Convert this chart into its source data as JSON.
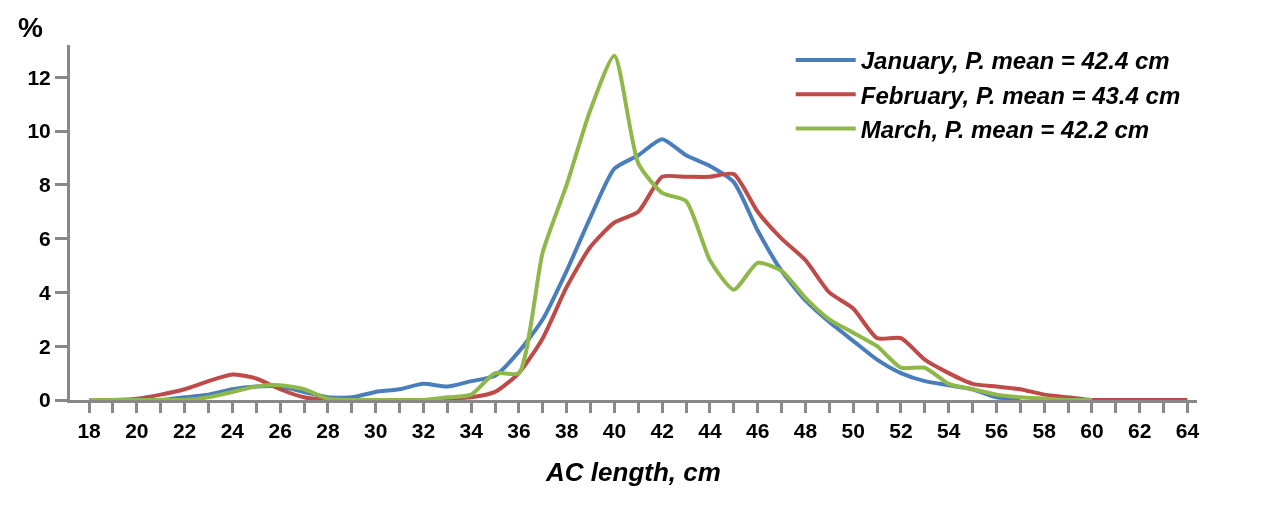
{
  "chart_data": {
    "type": "line",
    "xlabel": "AC length, cm",
    "ylabel": "%",
    "xlim": [
      17.2,
      64.4
    ],
    "xticks": [
      18,
      20,
      22,
      24,
      26,
      28,
      30,
      32,
      34,
      36,
      38,
      40,
      42,
      44,
      46,
      48,
      50,
      52,
      54,
      56,
      58,
      60,
      62,
      64
    ],
    "ylim": [
      0,
      13.2
    ],
    "yticks": [
      0,
      2,
      4,
      6,
      8,
      10,
      12
    ],
    "grid": false,
    "legend": "top right",
    "marker": "none",
    "line_style": "solid",
    "series": [
      {
        "name": "January, P. mean = 42.4 cm",
        "color": "#4a7ebb",
        "x": [
          20,
          21,
          22,
          23,
          24,
          25,
          26,
          27,
          28,
          29,
          30,
          31,
          32,
          33,
          34,
          35,
          36,
          37,
          38,
          39,
          40,
          41,
          42,
          43,
          44,
          45,
          46,
          47,
          48,
          49,
          50,
          51,
          52,
          53,
          54,
          55,
          56,
          57
        ],
        "values": [
          0,
          0,
          0.1,
          0.2,
          0.4,
          0.5,
          0.5,
          0.3,
          0.1,
          0.1,
          0.3,
          0.4,
          0.6,
          0.5,
          0.7,
          0.9,
          1.8,
          3.0,
          4.8,
          6.8,
          8.6,
          9.1,
          9.7,
          9.1,
          8.7,
          8.1,
          6.3,
          4.8,
          3.7,
          2.9,
          2.2,
          1.5,
          1.0,
          0.7,
          0.55,
          0.4,
          0.1,
          0.05
        ]
      },
      {
        "name": "February, P. mean = 43.4 cm",
        "color": "#be4b48",
        "x": [
          18,
          19,
          20,
          21,
          22,
          23,
          24,
          25,
          26,
          27,
          28,
          29,
          30,
          31,
          32,
          33,
          34,
          35,
          36,
          37,
          38,
          39,
          40,
          41,
          42,
          43,
          44,
          45,
          46,
          47,
          48,
          49,
          50,
          51,
          52,
          53,
          54,
          55,
          56,
          57,
          58,
          59,
          60,
          61,
          62,
          63,
          64
        ],
        "values": [
          0,
          0,
          0.05,
          0.2,
          0.4,
          0.7,
          0.95,
          0.8,
          0.4,
          0.1,
          0,
          0,
          0,
          0,
          0,
          0.05,
          0.1,
          0.3,
          1.0,
          2.3,
          4.2,
          5.7,
          6.6,
          7.0,
          8.3,
          8.3,
          8.3,
          8.4,
          7.0,
          6.0,
          5.2,
          4.0,
          3.4,
          2.3,
          2.3,
          1.5,
          1.0,
          0.6,
          0.5,
          0.4,
          0.2,
          0.1,
          0,
          0,
          0,
          0,
          0
        ]
      },
      {
        "name": "March, P. mean = 42.2 cm",
        "color": "#8fb84a",
        "x": [
          18,
          19,
          20,
          21,
          22,
          23,
          24,
          25,
          26,
          27,
          28,
          29,
          30,
          31,
          32,
          33,
          34,
          35,
          36,
          37,
          38,
          39,
          40,
          41,
          42,
          43,
          44,
          45,
          46,
          47,
          48,
          49,
          50,
          51,
          52,
          53,
          54,
          55,
          56,
          57,
          58,
          59,
          60
        ],
        "values": [
          0,
          0,
          0,
          0,
          0,
          0.1,
          0.3,
          0.5,
          0.55,
          0.4,
          0.05,
          0,
          0,
          0,
          0,
          0.1,
          0.2,
          1.0,
          1.0,
          5.5,
          8.0,
          10.8,
          12.8,
          8.8,
          7.7,
          7.4,
          5.2,
          4.1,
          5.1,
          4.8,
          3.8,
          3.0,
          2.5,
          2.0,
          1.2,
          1.2,
          0.6,
          0.4,
          0.2,
          0.1,
          0.05,
          0,
          0
        ]
      }
    ]
  }
}
